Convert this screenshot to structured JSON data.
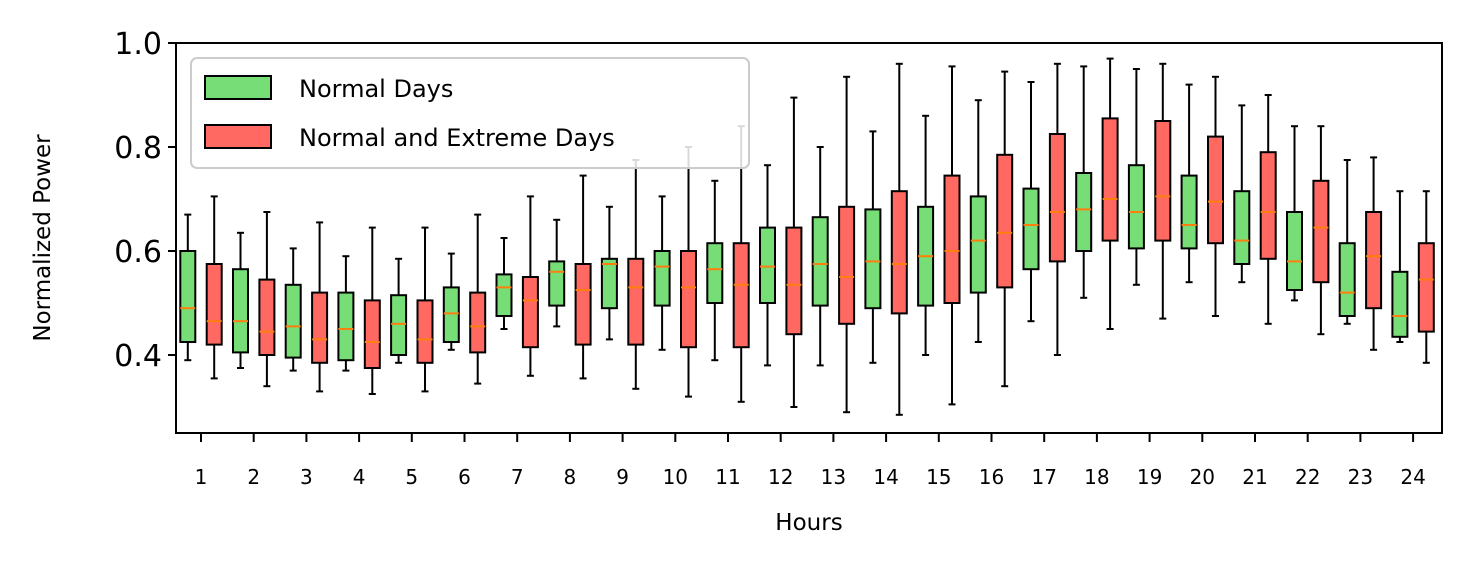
{
  "chart_data": {
    "type": "box",
    "xlabel": "Hours",
    "ylabel": "Normalized Power",
    "ylim": [
      0.25,
      1.0
    ],
    "yticks": [
      "0.4",
      "0.6",
      "0.8",
      "1.0"
    ],
    "categories": [
      "1",
      "2",
      "3",
      "4",
      "5",
      "6",
      "7",
      "8",
      "9",
      "10",
      "11",
      "12",
      "13",
      "14",
      "15",
      "16",
      "17",
      "18",
      "19",
      "20",
      "21",
      "22",
      "23",
      "24"
    ],
    "legend": {
      "placement": "upper-left"
    },
    "series": [
      {
        "name": "Normal Days",
        "color": "#77dd77",
        "whisker_low": [
          0.39,
          0.375,
          0.37,
          0.37,
          0.385,
          0.41,
          0.45,
          0.455,
          0.43,
          0.41,
          0.39,
          0.38,
          0.38,
          0.385,
          0.4,
          0.425,
          0.465,
          0.51,
          0.535,
          0.54,
          0.54,
          0.505,
          0.46,
          0.425
        ],
        "q1": [
          0.425,
          0.405,
          0.395,
          0.39,
          0.4,
          0.425,
          0.475,
          0.495,
          0.49,
          0.495,
          0.5,
          0.5,
          0.495,
          0.49,
          0.495,
          0.52,
          0.565,
          0.6,
          0.605,
          0.605,
          0.575,
          0.525,
          0.475,
          0.435
        ],
        "median": [
          0.49,
          0.465,
          0.455,
          0.45,
          0.46,
          0.48,
          0.53,
          0.56,
          0.575,
          0.57,
          0.565,
          0.57,
          0.575,
          0.58,
          0.59,
          0.62,
          0.65,
          0.68,
          0.675,
          0.65,
          0.62,
          0.58,
          0.52,
          0.475
        ],
        "q3": [
          0.6,
          0.565,
          0.535,
          0.52,
          0.515,
          0.53,
          0.555,
          0.58,
          0.585,
          0.6,
          0.615,
          0.645,
          0.665,
          0.68,
          0.685,
          0.705,
          0.72,
          0.75,
          0.765,
          0.745,
          0.715,
          0.675,
          0.615,
          0.56
        ],
        "whisker_high": [
          0.67,
          0.635,
          0.605,
          0.59,
          0.585,
          0.595,
          0.625,
          0.66,
          0.685,
          0.705,
          0.735,
          0.765,
          0.8,
          0.83,
          0.86,
          0.89,
          0.925,
          0.955,
          0.95,
          0.92,
          0.88,
          0.84,
          0.775,
          0.715
        ]
      },
      {
        "name": "Normal and Extreme Days",
        "color": "#ff6961",
        "whisker_low": [
          0.355,
          0.34,
          0.33,
          0.325,
          0.33,
          0.345,
          0.36,
          0.355,
          0.335,
          0.32,
          0.31,
          0.3,
          0.29,
          0.285,
          0.305,
          0.34,
          0.4,
          0.45,
          0.47,
          0.475,
          0.46,
          0.44,
          0.41,
          0.385
        ],
        "q1": [
          0.42,
          0.4,
          0.385,
          0.375,
          0.385,
          0.405,
          0.415,
          0.42,
          0.42,
          0.415,
          0.415,
          0.44,
          0.46,
          0.48,
          0.5,
          0.53,
          0.58,
          0.62,
          0.62,
          0.615,
          0.585,
          0.54,
          0.49,
          0.445
        ],
        "median": [
          0.465,
          0.445,
          0.43,
          0.425,
          0.43,
          0.455,
          0.505,
          0.525,
          0.53,
          0.53,
          0.535,
          0.535,
          0.55,
          0.575,
          0.6,
          0.635,
          0.675,
          0.7,
          0.705,
          0.695,
          0.675,
          0.645,
          0.59,
          0.545
        ],
        "q3": [
          0.575,
          0.545,
          0.52,
          0.505,
          0.505,
          0.52,
          0.55,
          0.575,
          0.585,
          0.6,
          0.615,
          0.645,
          0.685,
          0.715,
          0.745,
          0.785,
          0.825,
          0.855,
          0.85,
          0.82,
          0.79,
          0.735,
          0.675,
          0.615
        ],
        "whisker_high": [
          0.705,
          0.675,
          0.655,
          0.645,
          0.645,
          0.67,
          0.705,
          0.745,
          0.775,
          0.8,
          0.84,
          0.895,
          0.935,
          0.96,
          0.955,
          0.945,
          0.96,
          0.97,
          0.96,
          0.935,
          0.9,
          0.84,
          0.78,
          0.715
        ]
      }
    ]
  }
}
